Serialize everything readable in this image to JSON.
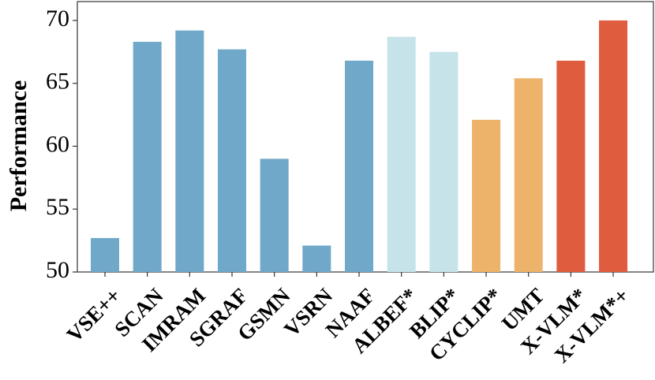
{
  "chart_data": {
    "type": "bar",
    "y_label": "Performance",
    "categories": [
      "VSE++",
      "SCAN",
      "IMRAM",
      "SGRAF",
      "GSMN",
      "VSRN",
      "NAAF",
      "ALBEF*",
      "BLIP*",
      "CYCLIP*",
      "UMT",
      "X-VLM*",
      "X-VLM*+"
    ],
    "values": [
      52.7,
      68.3,
      69.2,
      67.7,
      59.0,
      52.1,
      66.8,
      68.7,
      67.5,
      62.1,
      65.4,
      66.8,
      70.0
    ],
    "colors": [
      "#6fa8c8",
      "#6fa8c8",
      "#6fa8c8",
      "#6fa8c8",
      "#6fa8c8",
      "#6fa8c8",
      "#6fa8c8",
      "#c6e3ea",
      "#c6e3ea",
      "#eeb36a",
      "#eeb36a",
      "#e05c3e",
      "#e05c3e"
    ],
    "ylim": [
      50,
      71.5
    ],
    "yticks": [
      50,
      55,
      60,
      65,
      70
    ],
    "grid": false
  }
}
